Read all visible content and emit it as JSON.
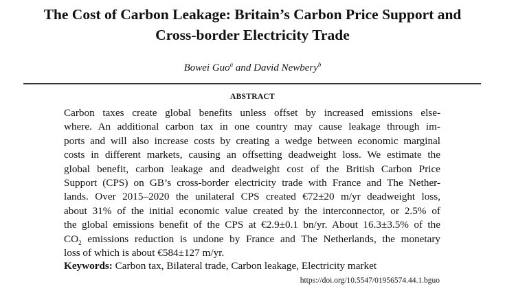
{
  "title": [
    "The Cost of Carbon Leakage: Britain’s Carbon Price Support and",
    "Cross-border Electricity Trade"
  ],
  "authors": {
    "author1": "Bowei Guo",
    "author1_sup": "a",
    "conj": " and ",
    "author2": "David Newbery",
    "author2_sup": "b"
  },
  "abstract_heading": "ABSTRACT",
  "abstract_lines": [
    "Carbon taxes create global benefits unless offset by increased emissions else-",
    "where. An additional carbon tax in one country may cause leakage through im-",
    "ports and will also increase costs by creating a wedge between economic marginal",
    "costs in different markets, causing an offsetting deadweight loss. We estimate the",
    "global benefit, carbon leakage and deadweight cost of the British Carbon Price",
    "Support (CPS) on GB’s cross-border electricity trade with France and The Nether-",
    "lands. Over 2015–2020 the unilateral CPS created €72±20 m/yr deadweight loss,",
    "about 31% of the initial economic value created by the interconnector, or 2.5% of",
    "the global emissions benefit of the CPS at €2.9±0.1 bn/yr. About 16.3±3.5% of the",
    "emissions reduction is undone by France and The Netherlands, the monetary",
    "loss of which is about €584±127 m/yr."
  ],
  "co2": {
    "base": "CO",
    "sub": "2"
  },
  "keywords": {
    "label": "Keywords:",
    "text": " Carbon tax, Bilateral trade, Carbon leakage, Electricity market"
  },
  "doi": "https://doi.org/10.5547/01956574.44.1.bguo"
}
